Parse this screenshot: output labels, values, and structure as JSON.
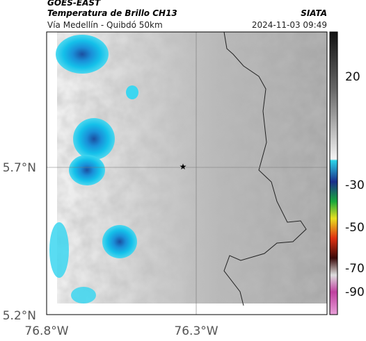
{
  "header": {
    "satellite": "GOES-EAST",
    "product": "Temperatura de Brillo CH13",
    "source": "SIATA",
    "route": "Vía Medellín - Quibdó 50km",
    "datetime": "2024-11-03 09:49"
  },
  "map": {
    "lat_ticks": [
      "5.7°N",
      "5.2°N"
    ],
    "lon_ticks": [
      "76.8°W",
      "76.3°W"
    ],
    "colorbar_ticks": [
      "20",
      "-30",
      "-50",
      "-70",
      "-90"
    ]
  }
}
